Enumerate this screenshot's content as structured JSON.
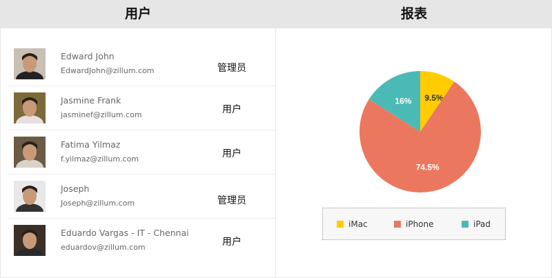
{
  "header": {
    "users_title": "用户",
    "reports_title": "报表"
  },
  "users": [
    {
      "name": "Edward John",
      "email": "EdwardJohn@zillum.com",
      "role": "管理员",
      "avatar_bg": "#c9c0b5",
      "shirt": "#222"
    },
    {
      "name": "Jasmine Frank",
      "email": "jasminef@zillum.com",
      "role": "用户",
      "avatar_bg": "#7d6a3a",
      "shirt": "#e8dfe0"
    },
    {
      "name": "Fatima Yilmaz",
      "email": "f.yilmaz@zillum.com",
      "role": "用户",
      "avatar_bg": "#6b5a45",
      "shirt": "#d8d2c8"
    },
    {
      "name": "Joseph",
      "email": "Joseph@zillum.com",
      "role": "管理员",
      "avatar_bg": "#e8e8e8",
      "shirt": "#333"
    },
    {
      "name": "Eduardo Vargas - IT - Chennai",
      "email": "eduardov@zillum.com",
      "role": "用户",
      "avatar_bg": "#3a3028",
      "shirt": "#2a2a2a"
    }
  ],
  "chart_data": {
    "type": "pie",
    "categories": [
      "iMac",
      "iPhone",
      "iPad"
    ],
    "values": [
      9.5,
      74.5,
      16
    ],
    "labels": [
      "9.5%",
      "74.5%",
      "16%"
    ],
    "colors": [
      "#ffcc00",
      "#eb785e",
      "#4bbab6"
    ],
    "legend": "bottom"
  }
}
